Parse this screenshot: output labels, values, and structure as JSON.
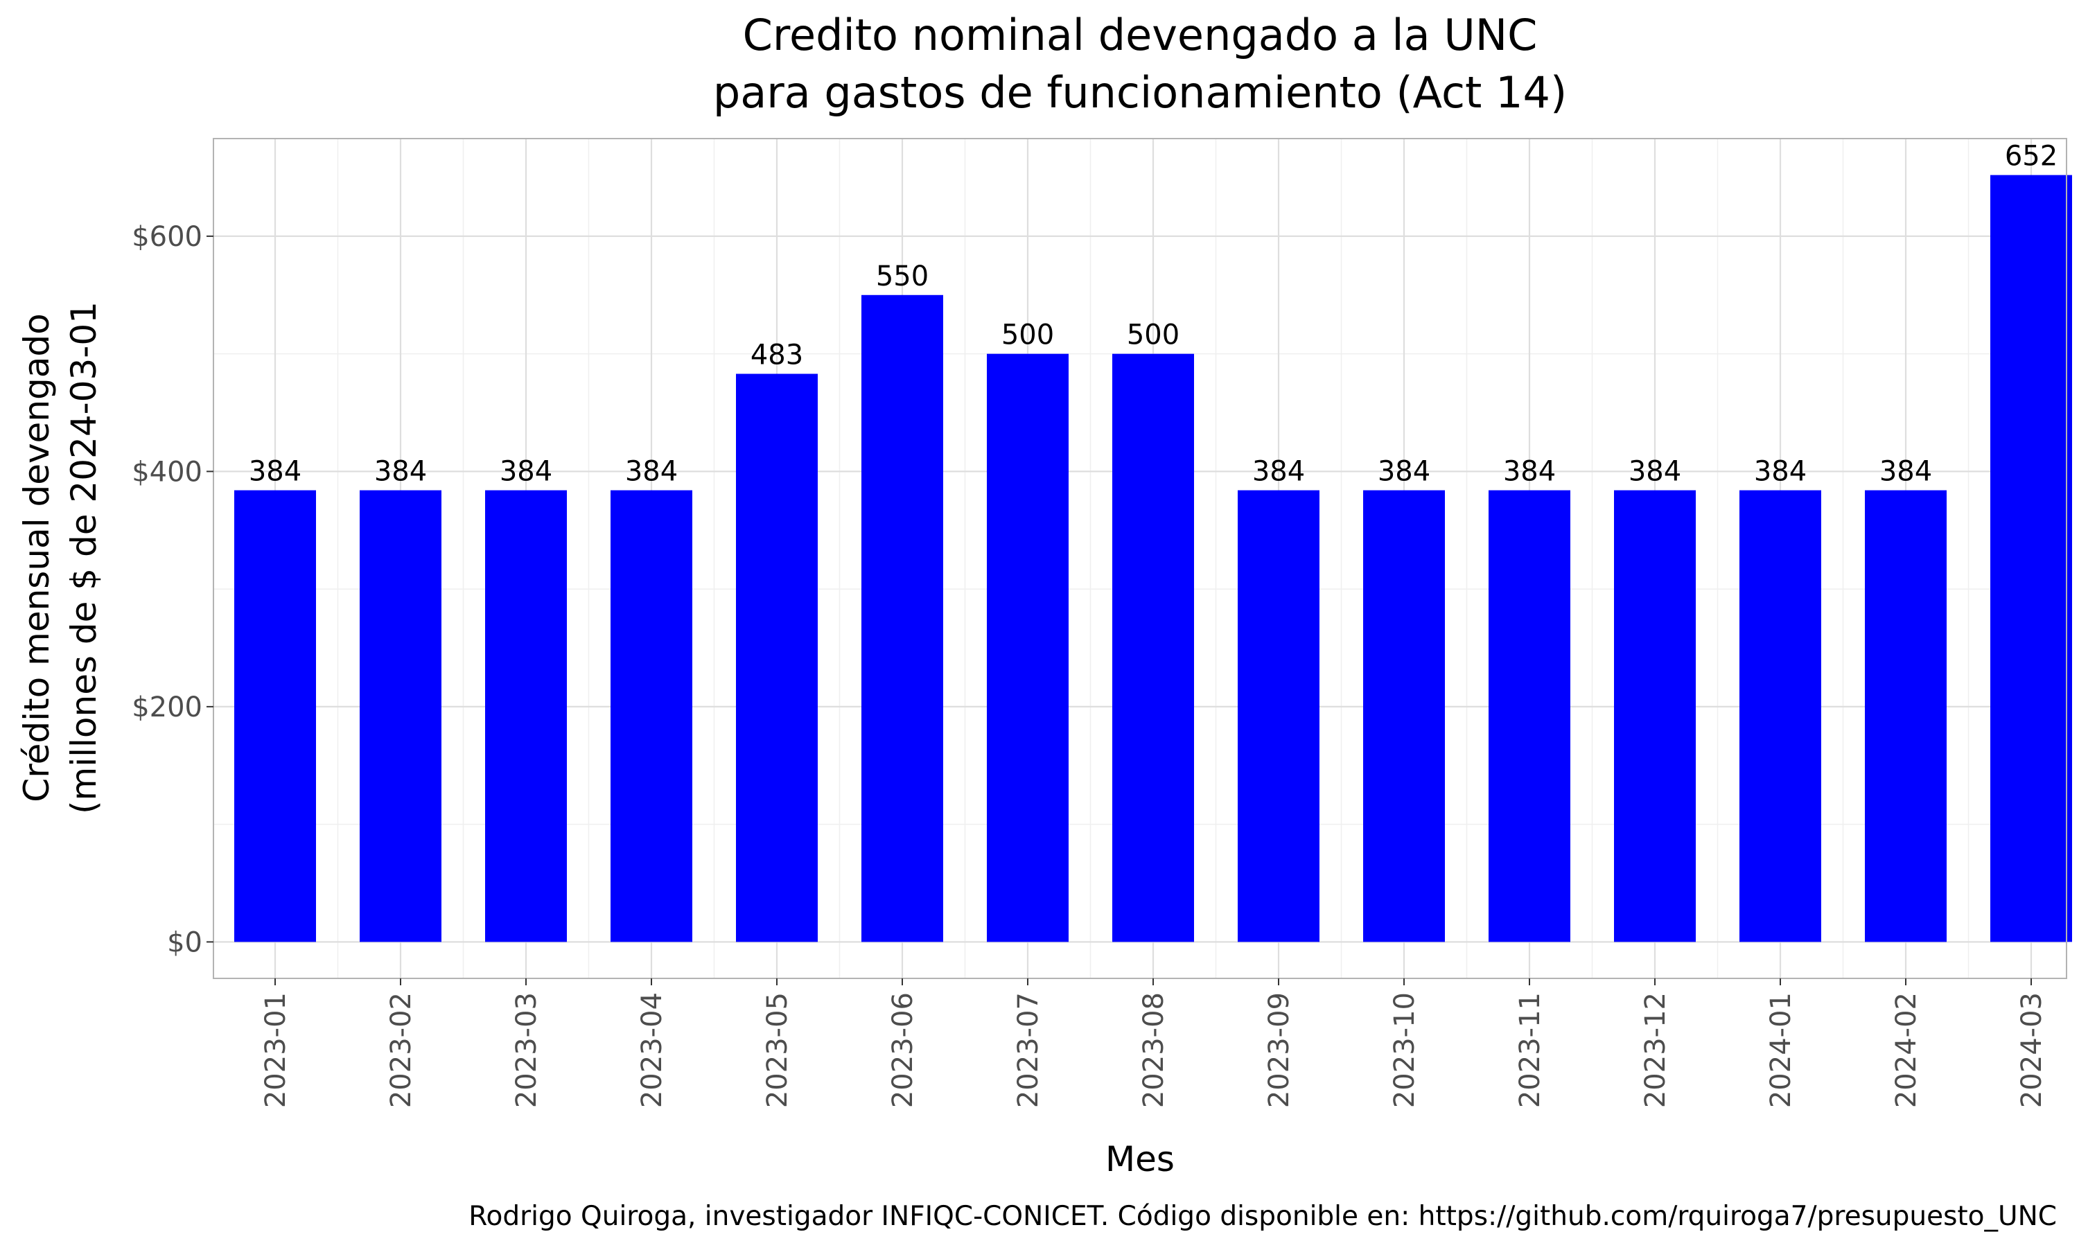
{
  "chart_data": {
    "type": "bar",
    "title": "Credito nominal devengado a la UNC",
    "subtitle": "para gastos de funcionamiento (Act 14)",
    "xlabel": "Mes",
    "ylabel_line1": "Crédito mensual devengado",
    "ylabel_line2": "(millones de $ de 2024-03-01",
    "caption": "Rodrigo Quiroga, investigador INFIQC-CONICET. Código disponible en: https://github.com/rquiroga7/presupuesto_UNC",
    "categories": [
      "2023-01",
      "2023-02",
      "2023-03",
      "2023-04",
      "2023-05",
      "2023-06",
      "2023-07",
      "2023-08",
      "2023-09",
      "2023-10",
      "2023-11",
      "2023-12",
      "2024-01",
      "2024-02",
      "2024-03"
    ],
    "values": [
      384,
      384,
      384,
      384,
      483,
      550,
      500,
      500,
      384,
      384,
      384,
      384,
      384,
      384,
      652
    ],
    "data_labels": [
      "384",
      "384",
      "384",
      "384",
      "483",
      "550",
      "500",
      "500",
      "384",
      "384",
      "384",
      "384",
      "384",
      "384",
      "652"
    ],
    "y_ticks": [
      0,
      200,
      400,
      600
    ],
    "y_tick_labels": [
      "$0",
      "$200",
      "$400",
      "$600"
    ],
    "ylim": [
      -31,
      683
    ],
    "grid": true,
    "bar_color": "#0000ff",
    "panel_border_color": "#b3b3b3",
    "grid_major_color": "#dedede",
    "grid_minor_color": "#efefef"
  }
}
